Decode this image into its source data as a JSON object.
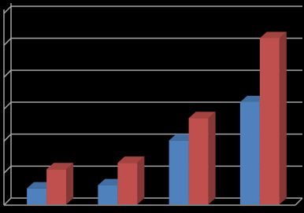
{
  "chart_data": {
    "type": "bar3d",
    "categories": [
      null,
      null,
      null,
      null
    ],
    "series": [
      {
        "color": "#4f81bd",
        "values": [
          0.5,
          0.6,
          2.0,
          3.2
        ]
      },
      {
        "color": "#c0504d",
        "values": [
          1.1,
          1.3,
          2.7,
          5.2
        ]
      }
    ],
    "ylim": [
      0,
      6
    ],
    "yticks": [
      0,
      1,
      2,
      3,
      4,
      5,
      6
    ],
    "grid": true
  }
}
